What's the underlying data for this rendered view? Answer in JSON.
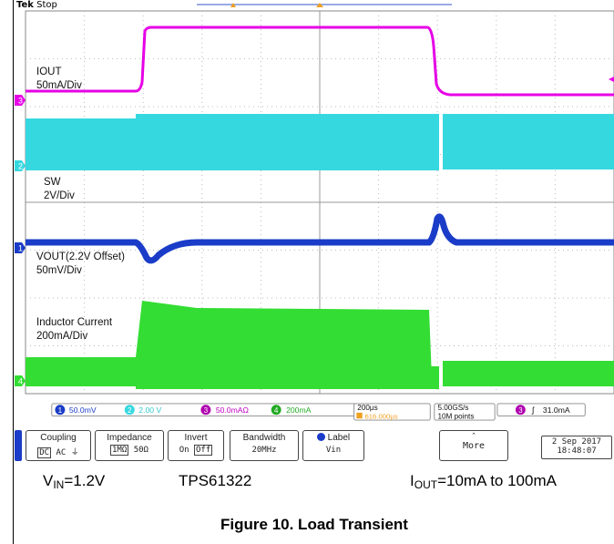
{
  "scope": {
    "brand": "Tek",
    "run_state": "Stop",
    "channels": [
      {
        "id": "1",
        "color": "#1a3cc8"
      },
      {
        "id": "2",
        "color": "#36d8e0"
      },
      {
        "id": "3",
        "color": "#e600e6"
      },
      {
        "id": "4",
        "color": "#33dd33"
      }
    ],
    "trace_labels": {
      "iout": [
        "IOUT",
        "50mA/Div"
      ],
      "sw": [
        "SW",
        "2V/Div"
      ],
      "vout": [
        "VOUT(2.2V Offset)",
        "50mV/Div"
      ],
      "inductor": [
        "Inductor Current",
        "200mA/Div"
      ]
    },
    "ground_markers": [
      "3",
      "2",
      "1",
      "4"
    ],
    "status_bar": {
      "ch1": "50.0mV",
      "ch2": "2.00 V",
      "ch3": "50.0mAΩ",
      "ch4": "200mA",
      "timebase": "200µs",
      "trigger_pos": "616.000µs",
      "sample_rate": "5.00GS/s",
      "record_length": "10M points",
      "trigger_ch": "3",
      "trigger_level": "31.0mA"
    },
    "menu": {
      "coupling_title": "Coupling",
      "coupling_opts": [
        "DC",
        "AC",
        "⏚"
      ],
      "impedance_title": "Impedance",
      "impedance_opts": [
        "1MΩ",
        "50Ω"
      ],
      "invert_title": "Invert",
      "invert_opts": [
        "On",
        "Off"
      ],
      "bandwidth_title": "Bandwidth",
      "bandwidth_value": "20MHz",
      "label_title": "Label",
      "label_value": "Vin",
      "more_label": "More",
      "date": "2 Sep  2017",
      "time": "18:48:07"
    }
  },
  "captions": {
    "vin_main": "V",
    "vin_sub": "IN",
    "vin_rest": "=1.2V",
    "device": "TPS61322",
    "iout_main": "I",
    "iout_sub": "OUT",
    "iout_rest": "=10mA to 100mA",
    "figure": "Figure 10. Load Transient"
  }
}
